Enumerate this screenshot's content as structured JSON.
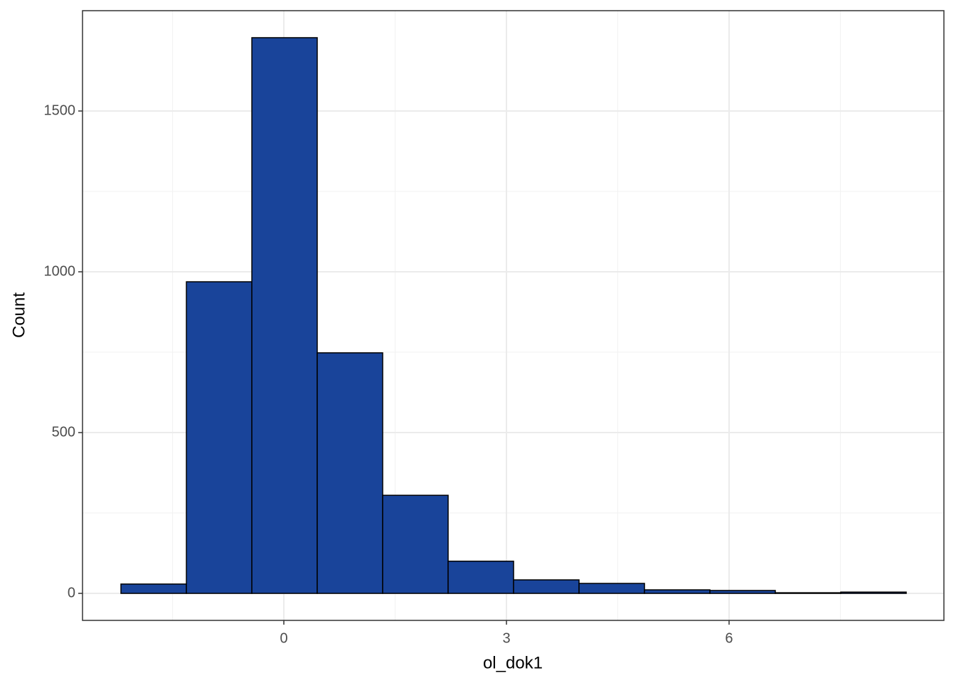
{
  "chart_data": {
    "type": "histogram",
    "x_label": "ol_dok1",
    "y_label": "Count",
    "bins": [
      -2.195,
      -1.313,
      -0.431,
      0.45,
      1.332,
      2.214,
      3.096,
      3.978,
      4.86,
      5.742,
      6.623,
      7.505,
      8.387
    ],
    "values": [
      29,
      969,
      1728,
      748,
      305,
      100,
      42,
      31,
      11,
      9,
      2,
      4
    ],
    "color": "#19449a",
    "edge_color": "#000000",
    "xlim": [
      -2.713,
      8.895
    ],
    "ylim": [
      -84,
      1812
    ],
    "xticks": [
      0,
      3,
      6
    ],
    "yticks": [
      0,
      500,
      1000,
      1500
    ],
    "x_minor_ticks": [
      -1.5,
      1.5,
      4.5,
      7.5
    ],
    "y_minor_ticks": [
      250,
      750,
      1250
    ],
    "grid": true
  }
}
